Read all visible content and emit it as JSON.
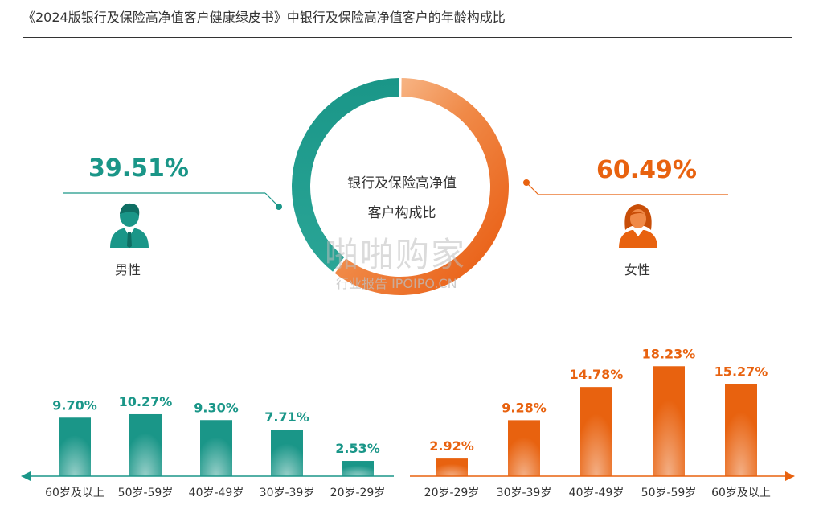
{
  "title": "《2024版银行及保险高净值客户健康绿皮书》中银行及保险高净值客户的年龄构成比",
  "donut": {
    "center_label_line1": "银行及保险高净值",
    "center_label_line2": "客户构成比",
    "male": {
      "label": "男性",
      "value": "39.51%",
      "share": 39.51,
      "color": "#1a9688",
      "icon": "male-user-icon"
    },
    "female": {
      "label": "女性",
      "value": "60.49%",
      "share": 60.49,
      "color": "#e8620f",
      "icon": "female-user-icon"
    }
  },
  "watermark": {
    "main": "啪啪购家",
    "sub": "行业报告 IPOIPO.CN"
  },
  "chart_data": [
    {
      "type": "bar",
      "name": "男性",
      "color": "#1a9688",
      "categories": [
        "60岁及以上",
        "50岁-59岁",
        "40岁-49岁",
        "30岁-39岁",
        "20岁-29岁"
      ],
      "values": [
        9.7,
        10.27,
        9.3,
        7.71,
        2.53
      ],
      "labels": [
        "9.70%",
        "10.27%",
        "9.30%",
        "7.71%",
        "2.53%"
      ],
      "axis_direction": "left"
    },
    {
      "type": "bar",
      "name": "女性",
      "color": "#e8620f",
      "categories": [
        "20岁-29岁",
        "30岁-39岁",
        "40岁-49岁",
        "50岁-59岁",
        "60岁及以上"
      ],
      "values": [
        2.92,
        9.28,
        14.78,
        18.23,
        15.27
      ],
      "labels": [
        "2.92%",
        "9.28%",
        "14.78%",
        "18.23%",
        "15.27%"
      ],
      "axis_direction": "right"
    }
  ]
}
